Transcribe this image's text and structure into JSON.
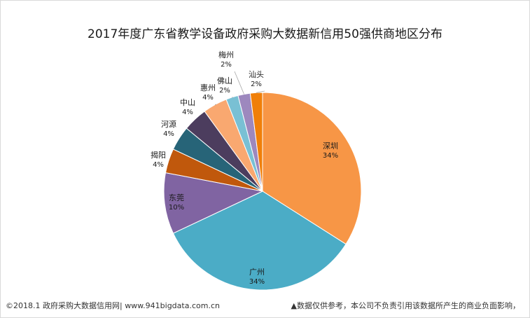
{
  "chart_data": {
    "type": "pie",
    "title": "2017年度广东省教学设备政府采购大数据新信用50强供商地区分布",
    "slices": [
      {
        "label": "深圳",
        "value": 34,
        "pct": "34%",
        "color": "#F79646"
      },
      {
        "label": "广州",
        "value": 34,
        "pct": "34%",
        "color": "#4BACC6"
      },
      {
        "label": "东莞",
        "value": 10,
        "pct": "10%",
        "color": "#8064A2"
      },
      {
        "label": "揭阳",
        "value": 4,
        "pct": "4%",
        "color": "#C0580C"
      },
      {
        "label": "河源",
        "value": 4,
        "pct": "4%",
        "color": "#276478"
      },
      {
        "label": "中山",
        "value": 4,
        "pct": "4%",
        "color": "#4C3D5E"
      },
      {
        "label": "惠州",
        "value": 4,
        "pct": "4%",
        "color": "#F9A870"
      },
      {
        "label": "佛山",
        "value": 2,
        "pct": "2%",
        "color": "#79C0D4"
      },
      {
        "label": "梅州",
        "value": 2,
        "pct": "2%",
        "color": "#9D88BE"
      },
      {
        "label": "汕头",
        "value": 2,
        "pct": "2%",
        "color": "#F07F09"
      }
    ]
  },
  "footer": {
    "left": "©2018.1 政府采购大数据信用网| www.941bigdata.com.cn",
    "right": "▲数据仅供参考，本公司不负责引用该数据所产生的商业负面影响，"
  }
}
